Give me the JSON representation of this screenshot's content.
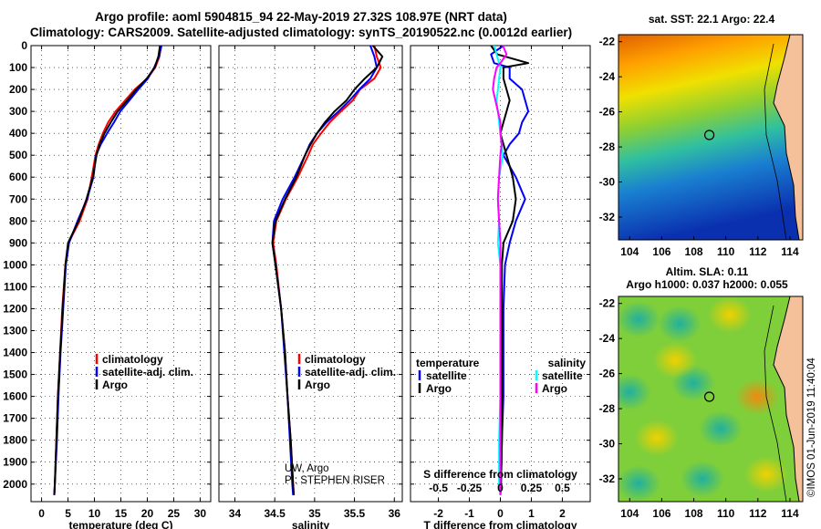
{
  "header": {
    "line1": "Argo profile: aoml 5904815_94 22-May-2019 27.32S 108.97E (NRT data)",
    "line2": "Climatology: CARS2009. Satellite-adjusted climatology: synTS_20190522.nc (0.0012d earlier)"
  },
  "sst_label": "sat. SST: 22.1 Argo: 22.4",
  "sla_label1": "Altim. SLA: 0.11",
  "sla_label2": "Argo h1000: 0.037 h2000: 0.055",
  "credit": "©IMOS 01-Jun-2019 11:40:04",
  "colors": {
    "climatology": "#ff0000",
    "satellite": "#0000ff",
    "argo": "#000000",
    "sal_satellite": "#00ffff",
    "sal_argo": "#ff00ff"
  },
  "chart_data": [
    {
      "type": "line",
      "xlabel": "temperature (deg C)",
      "xlim": [
        -2,
        32
      ],
      "xticks": [
        "0",
        "5",
        "10",
        "15",
        "20",
        "25",
        "30"
      ],
      "ylim": [
        2080,
        0
      ],
      "yticks": [
        "0",
        "100",
        "200",
        "300",
        "400",
        "500",
        "600",
        "700",
        "800",
        "900",
        "1000",
        "1100",
        "1200",
        "1300",
        "1400",
        "1500",
        "1600",
        "1700",
        "1800",
        "1900",
        "2000"
      ],
      "y_inverted": true,
      "grid": true,
      "legend": [
        "climatology",
        "satellite-adj. clim.",
        "Argo"
      ],
      "depth": [
        0,
        50,
        100,
        150,
        200,
        250,
        300,
        350,
        400,
        450,
        500,
        600,
        700,
        800,
        900,
        1000,
        1200,
        1400,
        1600,
        1800,
        2000,
        2050
      ],
      "series": [
        {
          "name": "climatology",
          "values": [
            22.6,
            22.3,
            21.5,
            20.0,
            17.6,
            15.8,
            14.0,
            12.6,
            11.6,
            10.8,
            10.2,
            9.5,
            8.7,
            7.2,
            5.1,
            4.5,
            3.9,
            3.5,
            3.1,
            2.8,
            2.5,
            2.4
          ]
        },
        {
          "name": "satellite-adj. clim.",
          "values": [
            22.7,
            22.2,
            21.3,
            20.1,
            18.3,
            16.6,
            14.9,
            13.7,
            12.4,
            11.2,
            10.3,
            9.8,
            8.6,
            6.8,
            5.2,
            4.6,
            4.1,
            3.6,
            3.2,
            2.9,
            2.5,
            2.4
          ]
        },
        {
          "name": "Argo",
          "values": [
            22.4,
            22.1,
            21.4,
            19.9,
            17.9,
            16.2,
            14.4,
            13.1,
            11.9,
            11.0,
            10.4,
            9.7,
            8.5,
            7.0,
            5.0,
            4.5,
            4.0,
            3.5,
            3.1,
            2.8,
            2.5,
            2.4
          ]
        }
      ]
    },
    {
      "type": "line",
      "xlabel": "salinity",
      "xlim": [
        33.8,
        36.1
      ],
      "xticks": [
        "34",
        "34.5",
        "35",
        "35.5",
        "36"
      ],
      "ylim": [
        2080,
        0
      ],
      "y_inverted": true,
      "grid": true,
      "legend": [
        "climatology",
        "satellite-adj. clim.",
        "Argo"
      ],
      "annotation1": "UW, Argo",
      "annotation2": "PI: STEPHEN RISER",
      "depth": [
        0,
        50,
        100,
        150,
        200,
        250,
        300,
        350,
        400,
        450,
        500,
        600,
        700,
        800,
        900,
        1000,
        1200,
        1400,
        1600,
        1800,
        2000,
        2050
      ],
      "series": [
        {
          "name": "climatology",
          "values": [
            35.75,
            35.78,
            35.83,
            35.75,
            35.57,
            35.48,
            35.33,
            35.19,
            35.08,
            34.98,
            34.92,
            34.79,
            34.64,
            34.52,
            34.48,
            34.52,
            34.58,
            34.63,
            34.66,
            34.7,
            34.73,
            34.74
          ]
        },
        {
          "name": "satellite-adj. clim.",
          "values": [
            35.7,
            35.75,
            35.78,
            35.7,
            35.56,
            35.44,
            35.3,
            35.15,
            35.03,
            34.94,
            34.88,
            34.75,
            34.6,
            34.49,
            34.47,
            34.51,
            34.58,
            34.62,
            34.66,
            34.69,
            34.72,
            34.73
          ]
        },
        {
          "name": "Argo",
          "values": [
            35.73,
            35.85,
            35.78,
            35.63,
            35.5,
            35.4,
            35.25,
            35.13,
            35.03,
            34.95,
            34.88,
            34.77,
            34.63,
            34.51,
            34.47,
            34.51,
            34.58,
            34.63,
            34.66,
            34.7,
            34.73,
            34.74
          ]
        }
      ]
    },
    {
      "type": "line",
      "xlabel": "T difference from climatology",
      "top_label": "S difference from climatology",
      "xlim": [
        -2.9,
        2.9
      ],
      "xticks": [
        "-2",
        "-1",
        "0",
        "1",
        "2"
      ],
      "top_ticks": [
        "-0.5",
        "-0.25",
        "0",
        "0.25",
        "0.5"
      ],
      "ylim": [
        2080,
        0
      ],
      "y_inverted": true,
      "grid": true,
      "legend_left_title": "temperature",
      "legend_right_title": "salinity",
      "legend_left": [
        "satellite",
        "Argo"
      ],
      "legend_right": [
        "satellite",
        "Argo"
      ],
      "depth": [
        0,
        40,
        80,
        100,
        150,
        200,
        250,
        300,
        350,
        400,
        450,
        500,
        600,
        700,
        800,
        900,
        1000,
        1200,
        1400,
        1600,
        1800,
        2000,
        2050
      ],
      "series": [
        {
          "name": "temperature satellite",
          "values": [
            0.1,
            -0.3,
            -0.2,
            0.3,
            0.3,
            0.7,
            0.8,
            0.9,
            0.7,
            0.6,
            0.3,
            0.1,
            0.5,
            0.8,
            0.5,
            0.3,
            0.15,
            0.1,
            0.1,
            0.1,
            0.05,
            0.02,
            0.0
          ]
        },
        {
          "name": "temperature Argo",
          "values": [
            -0.3,
            -0.1,
            0.9,
            0.1,
            0.1,
            0.2,
            0.3,
            0.2,
            0.1,
            0.0,
            0.1,
            0.2,
            0.4,
            0.5,
            0.4,
            0.1,
            0.05,
            0.05,
            0.05,
            0.05,
            0.05,
            0.02,
            0.0
          ]
        },
        {
          "name": "salinity satellite",
          "values": [
            -0.05,
            -0.03,
            -0.01,
            0.0,
            -0.01,
            -0.02,
            -0.03,
            -0.02,
            -0.01,
            0.0,
            0.01,
            0.02,
            -0.01,
            -0.02,
            -0.01,
            -0.02,
            0.0,
            0.0,
            0.0,
            0.0,
            -0.01,
            -0.01,
            0.0
          ]
        },
        {
          "name": "salinity Argo",
          "values": [
            0.02,
            0.05,
            0.0,
            -0.03,
            -0.05,
            -0.06,
            -0.04,
            -0.02,
            0.0,
            0.0,
            0.01,
            0.0,
            -0.01,
            -0.02,
            -0.01,
            0.0,
            0.0,
            0.0,
            0.0,
            0.0,
            0.0,
            0.0,
            0.0
          ]
        }
      ]
    }
  ],
  "maps": {
    "lon_ticks": [
      "104",
      "106",
      "108",
      "110",
      "112",
      "114"
    ],
    "lat_ticks": [
      "-22",
      "-24",
      "-26",
      "-28",
      "-30",
      "-32"
    ],
    "lon_range": [
      103.3,
      114.8
    ],
    "lat_range": [
      -33.3,
      -21.6
    ],
    "argo_lon": 108.97,
    "argo_lat": -27.32
  }
}
